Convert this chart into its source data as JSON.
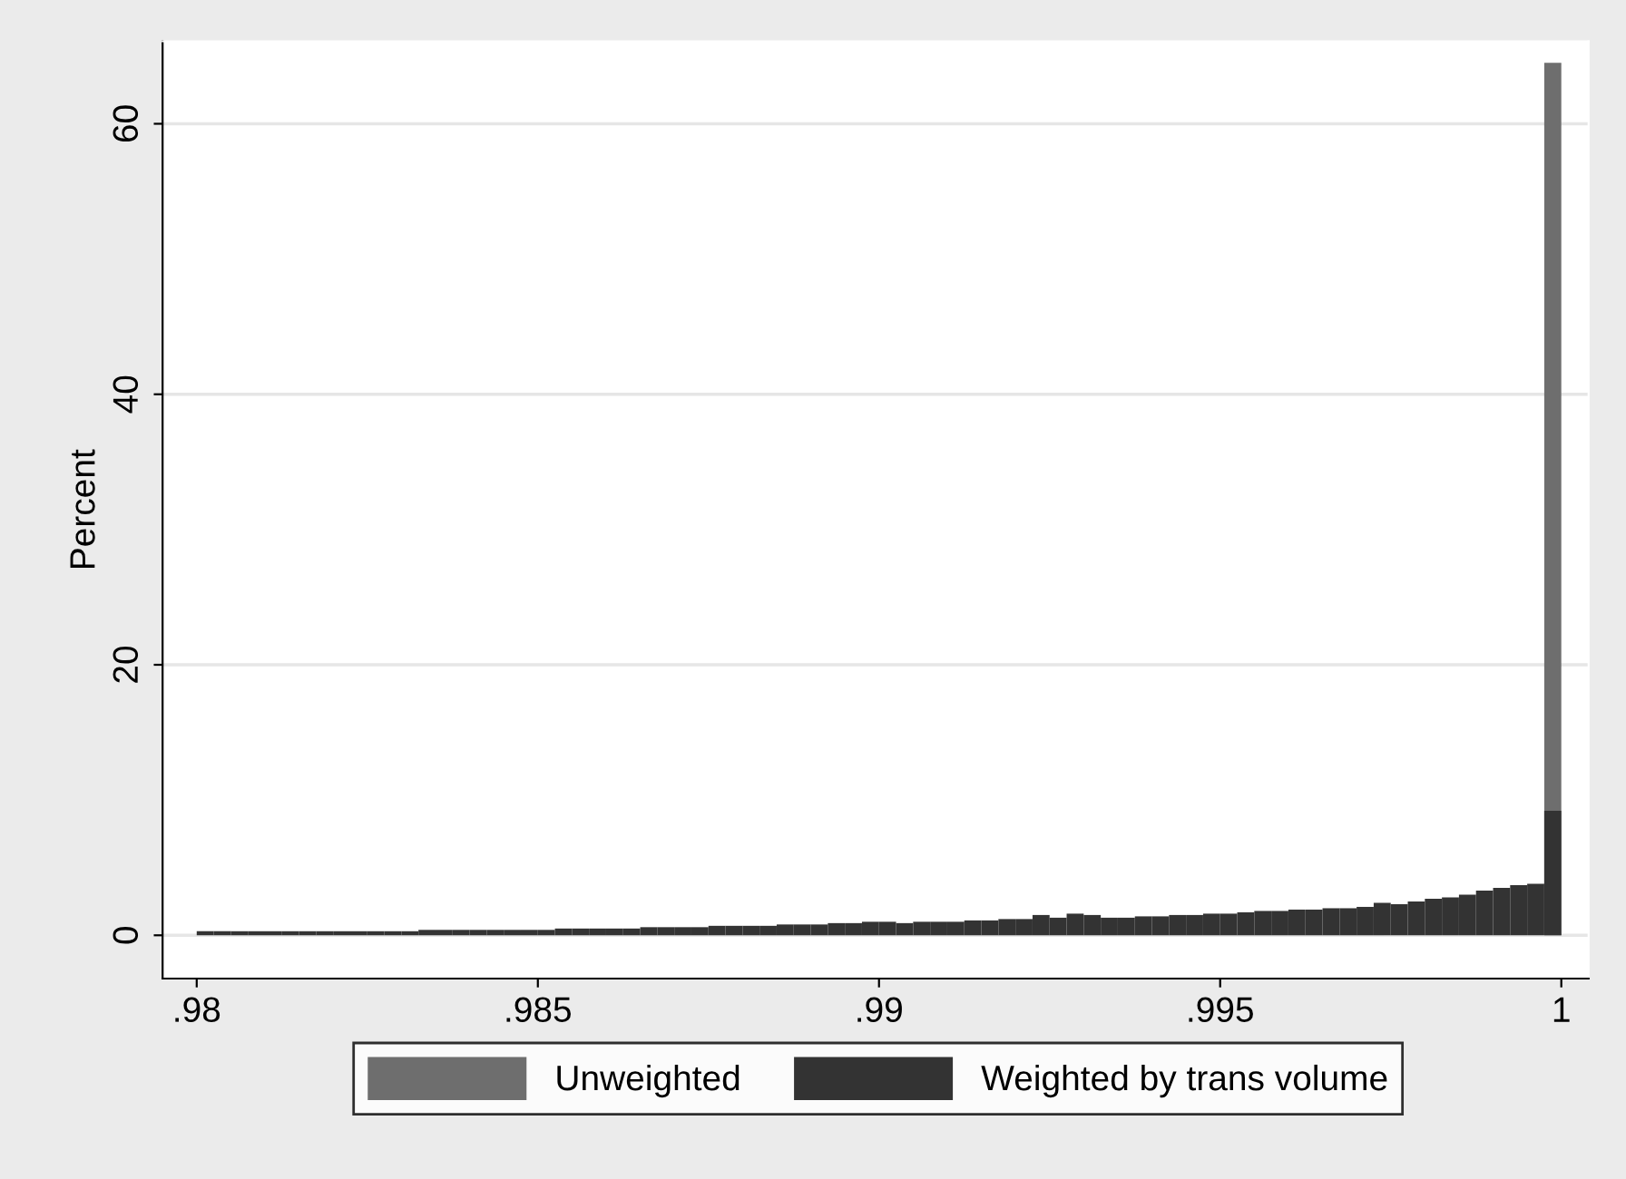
{
  "chart_data": {
    "type": "histogram",
    "ylabel": "Percent",
    "xlim": [
      0.9795,
      1.0004
    ],
    "ylim": [
      -3.2,
      66.1
    ],
    "xticks": [
      {
        "value": 0.98,
        "label": ".98"
      },
      {
        "value": 0.985,
        "label": ".985"
      },
      {
        "value": 0.99,
        "label": ".99"
      },
      {
        "value": 0.995,
        "label": ".995"
      },
      {
        "value": 1,
        "label": "1"
      }
    ],
    "yticks": [
      0,
      20,
      40,
      60
    ],
    "grid": "y",
    "legend": "bottom",
    "bins": [
      0.98,
      0.98025,
      0.9805,
      0.98075,
      0.981,
      0.98125,
      0.9815,
      0.98175,
      0.982,
      0.98225,
      0.9825,
      0.98275,
      0.983,
      0.98325,
      0.9835,
      0.98375,
      0.984,
      0.98425,
      0.9845,
      0.98475,
      0.985,
      0.98525,
      0.9855,
      0.98575,
      0.986,
      0.98625,
      0.9865,
      0.98675,
      0.987,
      0.98725,
      0.9875,
      0.98775,
      0.988,
      0.98825,
      0.9885,
      0.98875,
      0.989,
      0.98925,
      0.9895,
      0.98975,
      0.99,
      0.99025,
      0.9905,
      0.99075,
      0.991,
      0.99125,
      0.9915,
      0.99175,
      0.992,
      0.99225,
      0.9925,
      0.99275,
      0.993,
      0.99325,
      0.9935,
      0.99375,
      0.994,
      0.99425,
      0.9945,
      0.99475,
      0.995,
      0.99525,
      0.9955,
      0.99575,
      0.996,
      0.99625,
      0.9965,
      0.99675,
      0.997,
      0.99725,
      0.9975,
      0.99775,
      0.998,
      0.99825,
      0.9985,
      0.99875,
      0.999,
      0.99925,
      0.9995,
      0.99975,
      1.0
    ],
    "series": [
      {
        "name": "Unweighted",
        "color": "#6e6e6e",
        "values": [
          null,
          null,
          null,
          null,
          null,
          null,
          null,
          null,
          null,
          null,
          null,
          null,
          null,
          null,
          null,
          null,
          null,
          null,
          null,
          null,
          null,
          null,
          null,
          null,
          null,
          null,
          null,
          null,
          null,
          null,
          null,
          null,
          null,
          null,
          null,
          null,
          null,
          null,
          null,
          null,
          null,
          null,
          null,
          null,
          null,
          null,
          null,
          null,
          null,
          null,
          null,
          null,
          null,
          null,
          null,
          null,
          null,
          null,
          null,
          null,
          null,
          null,
          null,
          null,
          null,
          null,
          null,
          null,
          null,
          null,
          null,
          null,
          null,
          null,
          null,
          null,
          null,
          null,
          null,
          64.5
        ]
      },
      {
        "name": "Weighted by trans volume",
        "color": "#333333",
        "values": [
          0.3,
          0.3,
          0.3,
          0.3,
          0.3,
          0.3,
          0.3,
          0.3,
          0.3,
          0.3,
          0.3,
          0.3,
          0.3,
          0.4,
          0.4,
          0.4,
          0.4,
          0.4,
          0.4,
          0.4,
          0.4,
          0.5,
          0.5,
          0.5,
          0.5,
          0.5,
          0.6,
          0.6,
          0.6,
          0.6,
          0.7,
          0.7,
          0.7,
          0.7,
          0.8,
          0.8,
          0.8,
          0.9,
          0.9,
          1.0,
          1.0,
          0.9,
          1.0,
          1.0,
          1.0,
          1.1,
          1.1,
          1.2,
          1.2,
          1.5,
          1.3,
          1.6,
          1.5,
          1.3,
          1.3,
          1.4,
          1.4,
          1.5,
          1.5,
          1.6,
          1.6,
          1.7,
          1.8,
          1.8,
          1.9,
          1.9,
          2.0,
          2.0,
          2.1,
          2.4,
          2.3,
          2.5,
          2.7,
          2.8,
          3.0,
          3.3,
          3.5,
          3.7,
          3.8,
          9.2
        ]
      }
    ]
  }
}
